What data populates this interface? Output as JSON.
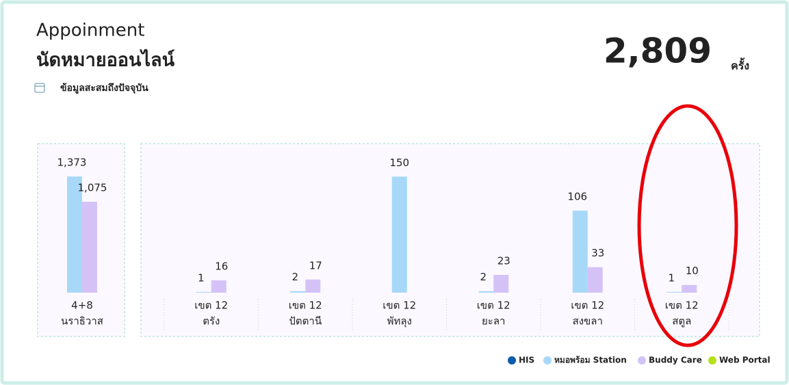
{
  "header": {
    "title": "Appoinment",
    "subtitle": "นัดหมายออนไลน์",
    "note": "ข้อมูลสะสมถึงปัจจุบัน",
    "total": "2,809",
    "unit": "ครั้ง"
  },
  "legend": [
    {
      "name": "HIS",
      "color": "#0b5cad"
    },
    {
      "name": "หมอพร้อม Station",
      "color": "#a8d8f8"
    },
    {
      "name": "Buddy Care",
      "color": "#d4c2f7"
    },
    {
      "name": "Web Portal",
      "color": "#b6e11a"
    }
  ],
  "chart_data": [
    {
      "type": "bar",
      "categories": [
        [
          "4+8",
          "นราธิวาส"
        ]
      ],
      "ylim": [
        0,
        1390
      ],
      "series": [
        {
          "name": "หมอพร้อม Station",
          "color": "#a8d8f8",
          "values": [
            1373
          ],
          "value_labels": [
            "1,373"
          ]
        },
        {
          "name": "Buddy Care",
          "color": "#d4c2f7",
          "values": [
            1075
          ],
          "value_labels": [
            "1,075"
          ]
        }
      ]
    },
    {
      "type": "bar",
      "categories": [
        [
          "เขต 12",
          "ตรัง"
        ],
        [
          "เขต 12",
          "ปัตตานี"
        ],
        [
          "เขต 12",
          "พัทลุง"
        ],
        [
          "เขต 12",
          "ยะลา"
        ],
        [
          "เขต 12",
          "สงขลา"
        ],
        [
          "เขต 12",
          "สตูล"
        ]
      ],
      "ylim": [
        0,
        152
      ],
      "series": [
        {
          "name": "หมอพร้อม Station",
          "color": "#a8d8f8",
          "values": [
            1,
            2,
            150,
            2,
            106,
            1
          ]
        },
        {
          "name": "Buddy Care",
          "color": "#d4c2f7",
          "values": [
            16,
            17,
            null,
            23,
            33,
            10
          ]
        }
      ]
    }
  ]
}
